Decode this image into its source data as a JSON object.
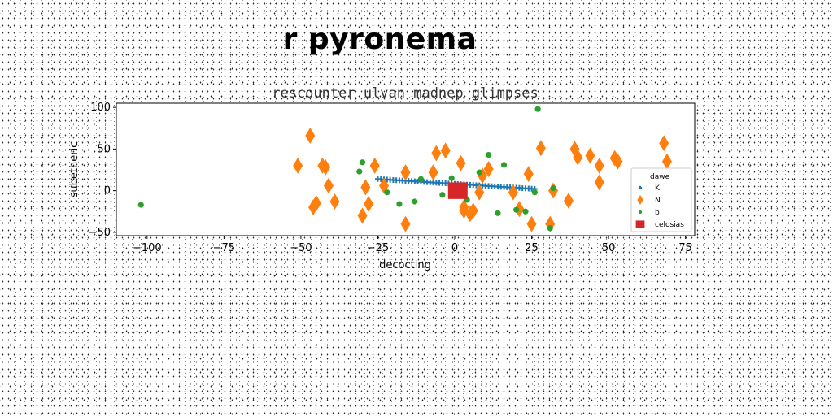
{
  "figure_title": "r pyronema",
  "chart_data": {
    "type": "scatter",
    "title": "rescounter ulvan madnep glimpses",
    "xlabel": "decocting",
    "ylabel": "subetheric",
    "xlim": [
      -110,
      78
    ],
    "ylim": [
      -54,
      105
    ],
    "xticks": [
      -100,
      -75,
      -50,
      -25,
      0,
      25,
      50,
      75
    ],
    "yticks": [
      -50,
      0,
      50,
      100
    ],
    "xtick_labels": [
      "−100",
      "−75",
      "−50",
      "−25",
      "0",
      "25",
      "50",
      "75"
    ],
    "ytick_labels": [
      "−50",
      "0",
      "50",
      "100"
    ],
    "grid": false,
    "legend": {
      "placement": "lower-right",
      "title": "dawe",
      "entries": [
        "K",
        "N",
        "b",
        "celosias"
      ]
    },
    "series": [
      {
        "name": "K",
        "marker": "plus",
        "color": "#1f77b4",
        "x": [
          -25,
          -24,
          -23,
          -22,
          -21,
          -20,
          -19,
          -18,
          -17,
          -16,
          -15,
          -14,
          -13,
          -12,
          -11,
          -10,
          -9,
          -8,
          -7,
          -6,
          -5,
          -4,
          -3,
          -2,
          -1,
          0,
          1,
          2,
          3,
          4,
          5,
          6,
          7,
          8,
          9,
          10,
          11,
          12,
          13,
          14,
          15,
          16,
          17,
          18,
          19,
          20,
          21,
          22,
          23,
          24,
          25,
          26
        ],
        "y": [
          14,
          13.8,
          13.6,
          13.3,
          13.1,
          12.8,
          12.6,
          12.4,
          12.1,
          11.9,
          11.7,
          11.4,
          11.2,
          11,
          10.7,
          10.5,
          10.3,
          10,
          9.8,
          9.6,
          9.3,
          9.1,
          8.9,
          8.6,
          8.4,
          8.2,
          7.9,
          7.7,
          7.5,
          7.2,
          7,
          6.8,
          6.5,
          6.3,
          6.1,
          5.8,
          5.6,
          5.4,
          5.1,
          4.9,
          4.7,
          4.4,
          4.2,
          4,
          3.7,
          3.5,
          3.3,
          3,
          2.8,
          2.6,
          2.3,
          2.1
        ]
      },
      {
        "name": "N",
        "marker": "diamond",
        "color": "#ff7f0e",
        "x": [
          -51,
          -47,
          -46,
          -45,
          -43,
          -42,
          -41,
          -39,
          -30,
          -29,
          -28,
          -26,
          -23,
          -16,
          -16,
          -7,
          -6,
          -3,
          2,
          3,
          3,
          5,
          6,
          8,
          9,
          11,
          19,
          21,
          24,
          25,
          28,
          31,
          32,
          37,
          39,
          40,
          44,
          47,
          47,
          52,
          53,
          68,
          69
        ],
        "y": [
          30,
          66,
          -20,
          -15,
          30,
          28,
          6,
          -13,
          -30,
          4,
          -16,
          30,
          6,
          22,
          -40,
          22,
          45,
          48,
          33,
          -24,
          -20,
          -28,
          -24,
          -2,
          18,
          26,
          -2,
          -22,
          20,
          -40,
          51,
          -40,
          0,
          -12,
          50,
          40,
          42,
          30,
          10,
          39,
          35,
          57,
          35
        ]
      },
      {
        "name": "b",
        "marker": "circle",
        "color": "#2ca02c",
        "x": [
          -102,
          -31,
          -30,
          -22,
          -18,
          -13,
          -11,
          -4,
          -1,
          4,
          8,
          11,
          14,
          16,
          20,
          23,
          26,
          27,
          31,
          32
        ],
        "y": [
          -17,
          23,
          34,
          -2,
          -16,
          -13,
          14,
          -5,
          15,
          -11,
          22,
          43,
          -27,
          31,
          -23,
          -25,
          -2,
          98,
          -45,
          3
        ]
      },
      {
        "name": "celosias",
        "marker": "square",
        "color": "#d62728",
        "x": [
          1
        ],
        "y": [
          0
        ]
      }
    ]
  }
}
